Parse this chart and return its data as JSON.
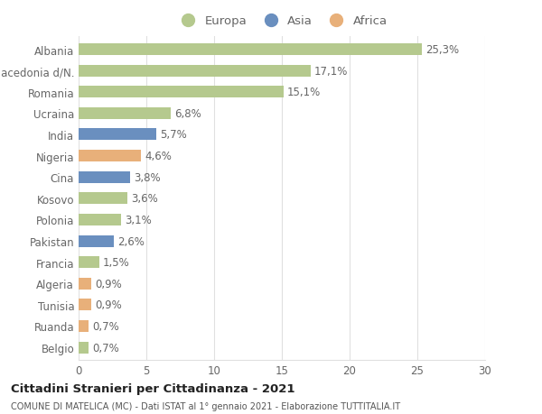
{
  "categories": [
    "Albania",
    "Macedonia d/N.",
    "Romania",
    "Ucraina",
    "India",
    "Nigeria",
    "Cina",
    "Kosovo",
    "Polonia",
    "Pakistan",
    "Francia",
    "Algeria",
    "Tunisia",
    "Ruanda",
    "Belgio"
  ],
  "values": [
    25.3,
    17.1,
    15.1,
    6.8,
    5.7,
    4.6,
    3.8,
    3.6,
    3.1,
    2.6,
    1.5,
    0.9,
    0.9,
    0.7,
    0.7
  ],
  "continents": [
    "Europa",
    "Europa",
    "Europa",
    "Europa",
    "Asia",
    "Africa",
    "Asia",
    "Europa",
    "Europa",
    "Asia",
    "Europa",
    "Africa",
    "Africa",
    "Africa",
    "Europa"
  ],
  "labels": [
    "25,3%",
    "17,1%",
    "15,1%",
    "6,8%",
    "5,7%",
    "4,6%",
    "3,8%",
    "3,6%",
    "3,1%",
    "2,6%",
    "1,5%",
    "0,9%",
    "0,9%",
    "0,7%",
    "0,7%"
  ],
  "colors": {
    "Europa": "#b5c98e",
    "Asia": "#6a8fbf",
    "Africa": "#e8b07a"
  },
  "xlim": [
    0,
    30
  ],
  "xticks": [
    0,
    5,
    10,
    15,
    20,
    25,
    30
  ],
  "title1": "Cittadini Stranieri per Cittadinanza - 2021",
  "title2": "COMUNE DI MATELICA (MC) - Dati ISTAT al 1° gennaio 2021 - Elaborazione TUTTITALIA.IT",
  "background_color": "#ffffff",
  "grid_color": "#e0e0e0",
  "label_fontsize": 8.5,
  "bar_height": 0.55,
  "ytick_fontsize": 8.5,
  "xtick_fontsize": 8.5
}
